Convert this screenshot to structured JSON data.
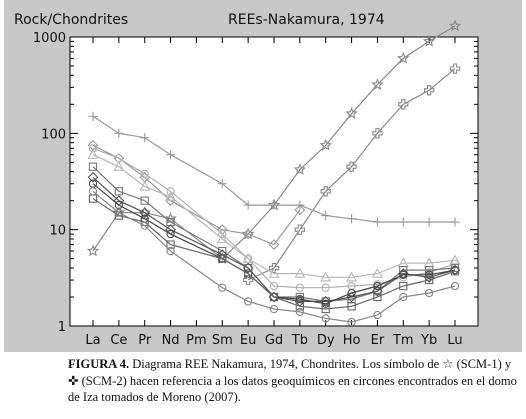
{
  "chart_data": {
    "type": "line",
    "title": "REEs-Nakamura, 1974",
    "ylabel": "Rock/Chondrites",
    "xlabel": "",
    "yscale": "log",
    "ylim": [
      1,
      1000
    ],
    "yticks": [
      "1",
      "10",
      "100",
      "1000"
    ],
    "categories": [
      "La",
      "Ce",
      "Pr",
      "Nd",
      "Pm",
      "Sm",
      "Eu",
      "Gd",
      "Tb",
      "Dy",
      "Ho",
      "Er",
      "Tm",
      "Yb",
      "Lu"
    ],
    "grid": false,
    "series": [
      {
        "marker": "star",
        "color": "#888888",
        "values": [
          6,
          15,
          15,
          13,
          null,
          5,
          9,
          18,
          42,
          75,
          160,
          320,
          600,
          900,
          1300
        ]
      },
      {
        "marker": "cross",
        "color": "#888888",
        "values": [
          null,
          null,
          null,
          null,
          null,
          null,
          3,
          4,
          10,
          25,
          45,
          100,
          200,
          280,
          470
        ]
      },
      {
        "marker": "plus",
        "color": "#999999",
        "values": [
          150,
          100,
          90,
          60,
          null,
          30,
          18,
          18,
          18,
          14,
          13,
          12,
          12,
          12,
          12
        ]
      },
      {
        "marker": "diamond",
        "color": "#9a9a9a",
        "values": [
          75,
          55,
          35,
          20,
          null,
          10,
          9,
          7,
          16,
          null,
          null,
          null,
          null,
          null,
          null
        ]
      },
      {
        "marker": "circle",
        "color": "#b0b0b0",
        "values": [
          70,
          55,
          38,
          25,
          null,
          9,
          5,
          2.6,
          2.5,
          2.5,
          2.6,
          2.7,
          3.2,
          3.6,
          4.4
        ]
      },
      {
        "marker": "triangle",
        "color": "#b8b8b8",
        "values": [
          60,
          45,
          28,
          22,
          null,
          8,
          5,
          3.5,
          3.5,
          3.2,
          3.2,
          3.5,
          4.5,
          4.5,
          4.8
        ]
      },
      {
        "marker": "square",
        "color": "#777777",
        "values": [
          45,
          25,
          20,
          12,
          null,
          6,
          4,
          2,
          2,
          1.8,
          1.9,
          2.3,
          3.8,
          3.8,
          4
        ]
      },
      {
        "marker": "diamond",
        "color": "#555555",
        "values": [
          35,
          20,
          15,
          10,
          null,
          5.5,
          4,
          2,
          1.8,
          1.8,
          2,
          2.3,
          3.5,
          3.2,
          3.8
        ]
      },
      {
        "marker": "circle",
        "color": "#444444",
        "values": [
          30,
          18,
          13,
          9,
          null,
          5,
          3.5,
          2,
          1.9,
          1.7,
          2.2,
          2.6,
          3.4,
          3.4,
          3.8
        ]
      },
      {
        "marker": "square",
        "color": "#666666",
        "values": [
          21,
          14,
          12,
          7,
          null,
          5,
          3.5,
          2,
          1.6,
          1.5,
          1.6,
          2,
          2.6,
          3,
          3.7
        ]
      },
      {
        "marker": "circle",
        "color": "#888888",
        "values": [
          25,
          15,
          11,
          6,
          null,
          2.5,
          1.8,
          1.5,
          1.4,
          1.2,
          1.1,
          1.3,
          2,
          2.2,
          2.6
        ]
      }
    ]
  },
  "caption": {
    "label": "FIGURA 4.",
    "text_1": " Diagrama REE Nakamura, 1974, Chondrites. Los símbolo de ",
    "star_symbol": "☆",
    "text_2": " (SCM-1) y ",
    "cross_symbol": "✜",
    "text_3": " (SCM-2) hacen referencia a los datos geoquímicos en circones encontrados en el domo de Iza tomados de Moreno (2007)."
  }
}
